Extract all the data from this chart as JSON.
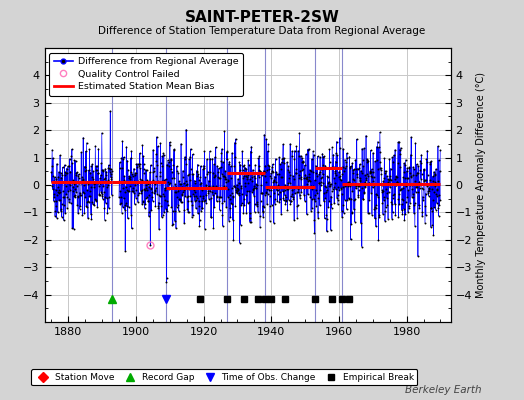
{
  "title": "SAINT-PETER-2SW",
  "subtitle": "Difference of Station Temperature Data from Regional Average",
  "ylabel": "Monthly Temperature Anomaly Difference (°C)",
  "ylim": [
    -5,
    5
  ],
  "xlim": [
    1873,
    1993
  ],
  "yticks": [
    -4,
    -3,
    -2,
    -1,
    0,
    1,
    2,
    3,
    4
  ],
  "xticks": [
    1880,
    1900,
    1920,
    1940,
    1960,
    1980
  ],
  "fig_bg_color": "#d4d4d4",
  "plot_bg_color": "#ffffff",
  "line_color": "#0000ff",
  "bias_color": "#ff0000",
  "marker_color": "#000000",
  "qc_color": "#ff80c0",
  "grid_color": "#c8c8c8",
  "vert_line_color": "#8888cc",
  "record_gap_x": 1893,
  "record_gap_y": -4.15,
  "time_obs_change_x": [
    1909
  ],
  "empirical_break_x": [
    1919,
    1927,
    1932,
    1936,
    1938,
    1940,
    1944,
    1953,
    1958,
    1961,
    1963
  ],
  "event_y": -4.15,
  "bias_segments": [
    {
      "x": [
        1875,
        1893
      ],
      "y": [
        0.12,
        0.12
      ]
    },
    {
      "x": [
        1893,
        1909
      ],
      "y": [
        0.12,
        0.12
      ]
    },
    {
      "x": [
        1909,
        1927
      ],
      "y": [
        -0.12,
        -0.12
      ]
    },
    {
      "x": [
        1927,
        1938
      ],
      "y": [
        0.42,
        0.42
      ]
    },
    {
      "x": [
        1938,
        1953
      ],
      "y": [
        -0.08,
        -0.08
      ]
    },
    {
      "x": [
        1953,
        1961
      ],
      "y": [
        0.62,
        0.62
      ]
    },
    {
      "x": [
        1961,
        1990
      ],
      "y": [
        0.05,
        0.05
      ]
    }
  ],
  "vertical_lines_x": [
    1893,
    1909,
    1927,
    1938,
    1953,
    1961
  ],
  "qc_failed_x": [
    1904.25
  ],
  "qc_failed_y": [
    -2.2
  ],
  "seed": 42,
  "start_year": 1875,
  "end_year": 1990,
  "watermark": "Berkeley Earth"
}
